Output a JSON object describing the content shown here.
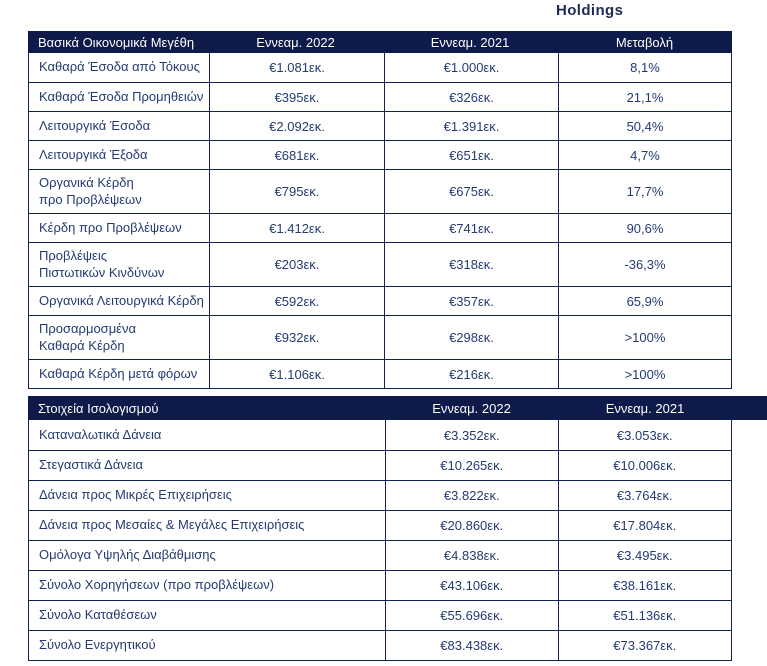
{
  "page": {
    "brand": "Holdings"
  },
  "colors": {
    "navy": "#0d1a4a",
    "text": "#243b72",
    "border": "#13214f"
  },
  "table1": {
    "title": "Βασικά Οικονομικά Μεγέθη",
    "col_2022": "Εννεαμ. 2022",
    "col_2021": "Εννεαμ. 2021",
    "col_change": "Μεταβολή",
    "rows": [
      {
        "label": "Καθαρά Έσοδα από Τόκους",
        "y2022": "€1.081εκ.",
        "y2021": "€1.000εκ.",
        "change": "8,1%"
      },
      {
        "label": "Καθαρά Έσοδα Προμηθειών",
        "y2022": "€395εκ.",
        "y2021": "€326εκ.",
        "change": "21,1%"
      },
      {
        "label": "Λειτουργικά Έσοδα",
        "y2022": "€2.092εκ.",
        "y2021": "€1.391εκ.",
        "change": "50,4%"
      },
      {
        "label": "Λειτουργικά Έξοδα",
        "y2022": "€681εκ.",
        "y2021": "€651εκ.",
        "change": "4,7%"
      },
      {
        "label": "Οργανικά Κέρδη\nπρο Προβλέψεων",
        "y2022": "€795εκ.",
        "y2021": "€675εκ.",
        "change": "17,7%"
      },
      {
        "label": "Κέρδη προ Προβλέψεων",
        "y2022": "€1.412εκ.",
        "y2021": "€741εκ.",
        "change": "90,6%"
      },
      {
        "label": "Προβλέψεις\nΠιστωτικών Κινδύνων",
        "y2022": "€203εκ.",
        "y2021": "€318εκ.",
        "change": "-36,3%"
      },
      {
        "label": "Οργανικά Λειτουργικά Κέρδη",
        "y2022": "€592εκ.",
        "y2021": "€357εκ.",
        "change": "65,9%"
      },
      {
        "label": "Προσαρμοσμένα\nΚαθαρά Κέρδη",
        "y2022": "€932εκ.",
        "y2021": "€298εκ.",
        "change": ">100%"
      },
      {
        "label": "Καθαρά Κέρδη μετά φόρων",
        "y2022": "€1.106εκ.",
        "y2021": "€216εκ.",
        "change": ">100%"
      }
    ]
  },
  "table2": {
    "title": "Στοιχεία Ισολογισμού",
    "col_2022": "Εννεαμ. 2022",
    "col_2021": "Εννεαμ. 2021",
    "rows": [
      {
        "label": "Καταναλωτικά Δάνεια",
        "y2022": "€3.352εκ.",
        "y2021": "€3.053εκ."
      },
      {
        "label": "Στεγαστικά Δάνεια",
        "y2022": "€10.265εκ.",
        "y2021": "€10.006εκ."
      },
      {
        "label": "Δάνεια προς Μικρές Επιχειρήσεις",
        "y2022": "€3.822εκ.",
        "y2021": "€3.764εκ."
      },
      {
        "label": "Δάνεια προς Μεσαίες & Μεγάλες Επιχειρήσεις",
        "y2022": "€20.860εκ.",
        "y2021": "€17.804εκ."
      },
      {
        "label": "Ομόλογα Υψηλής Διαβάθμισης",
        "y2022": "€4.838εκ.",
        "y2021": "€3.495εκ."
      },
      {
        "label": "Σύνολο Χορηγήσεων (προ προβλέψεων)",
        "y2022": "€43.106εκ.",
        "y2021": "€38.161εκ."
      },
      {
        "label": "Σύνολο Καταθέσεων",
        "y2022": "€55.696εκ.",
        "y2021": "€51.136εκ."
      },
      {
        "label": "Σύνολο Ενεργητικού",
        "y2022": "€83.438εκ.",
        "y2021": "€73.367εκ."
      }
    ]
  }
}
